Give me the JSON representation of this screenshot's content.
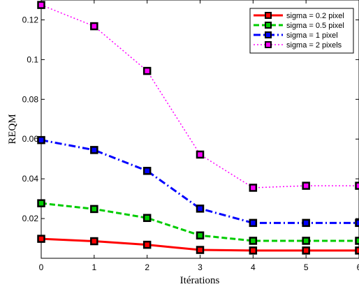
{
  "chart_data": {
    "type": "line",
    "title": "",
    "xlabel": "Itérations",
    "ylabel": "REQM",
    "x": [
      0,
      1,
      2,
      3,
      4,
      5,
      6
    ],
    "xlim": [
      0,
      6
    ],
    "ylim": [
      0,
      0.13
    ],
    "xticks": [
      "0",
      "1",
      "2",
      "3",
      "4",
      "5",
      "6"
    ],
    "yticks": [
      {
        "value": 0.02,
        "label": "0.02"
      },
      {
        "value": 0.04,
        "label": "0.04"
      },
      {
        "value": 0.06,
        "label": "0.06"
      },
      {
        "value": 0.08,
        "label": "0.08"
      },
      {
        "value": 0.1,
        "label": "0.1"
      },
      {
        "value": 0.12,
        "label": "0.12"
      }
    ],
    "grid": false,
    "legend_position": "top-right",
    "marker": "square",
    "series": [
      {
        "name": "sigma = 0.2 pixel",
        "color": "#ff0000",
        "line_style": "solid",
        "values": [
          0.0098,
          0.0086,
          0.0068,
          0.0042,
          0.0039,
          0.0039,
          0.0039
        ]
      },
      {
        "name": "sigma = 0.5 pixel",
        "color": "#00cc00",
        "line_style": "dashed",
        "values": [
          0.0277,
          0.0248,
          0.0203,
          0.0115,
          0.0088,
          0.0088,
          0.0088
        ]
      },
      {
        "name": "sigma = 1 pixel",
        "color": "#0000ff",
        "line_style": "dashdot",
        "values": [
          0.0595,
          0.0545,
          0.044,
          0.025,
          0.0178,
          0.0178,
          0.0178
        ]
      },
      {
        "name": "sigma = 2 pixels",
        "color": "#ff00ff",
        "line_style": "dotted",
        "values": [
          0.1275,
          0.1168,
          0.0943,
          0.0522,
          0.0355,
          0.0365,
          0.0365
        ]
      }
    ]
  }
}
